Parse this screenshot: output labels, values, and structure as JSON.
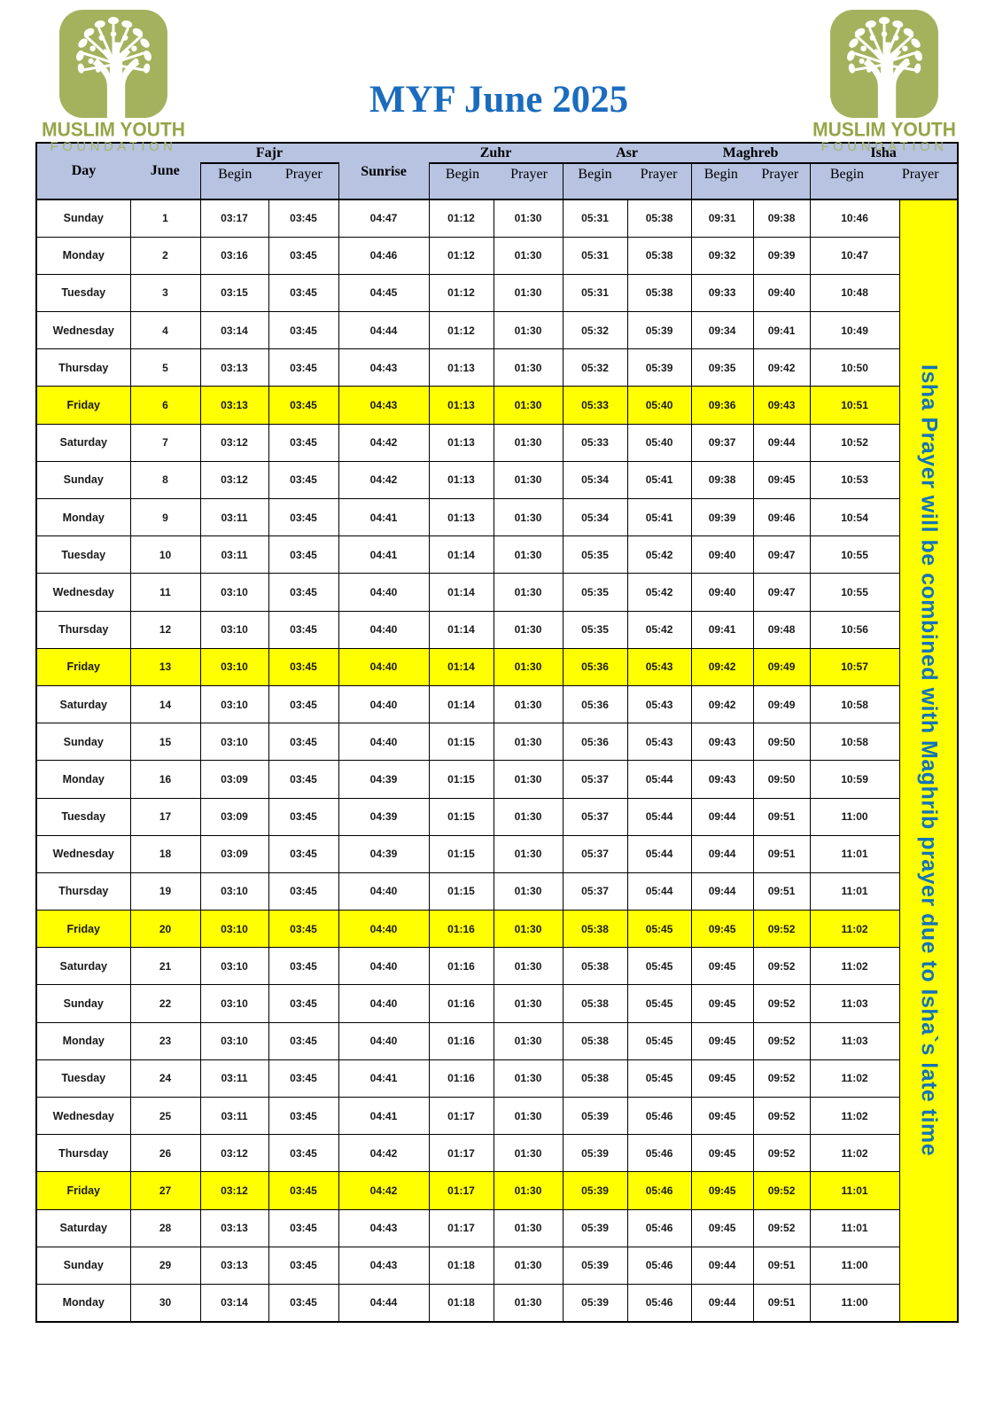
{
  "title": "MYF June 2025",
  "logo": {
    "line1": "MUSLIM YOUTH",
    "line2": "FOUNDATION"
  },
  "colors": {
    "header_fill": "#b7c3e1",
    "friday_highlight": "#ffff00",
    "title_blue": "#1b6cbe",
    "note_blue": "#1374b8",
    "logo_green": "#a4b25e"
  },
  "table": {
    "header": {
      "day": "Day",
      "june": "June",
      "groups": [
        "Fajr",
        "Sunrise",
        "Zuhr",
        "Asr",
        "Maghreb",
        "Isha"
      ],
      "begin": "Begin",
      "prayer": "Prayer"
    },
    "note": "Isha Prayer will be combined with Maghrib prayer due to Isha`s late time",
    "rows": [
      {
        "day": "Sunday",
        "date": "1",
        "friday": false,
        "times": [
          "03:17",
          "03:45",
          "04:47",
          "01:12",
          "01:30",
          "05:31",
          "05:38",
          "09:31",
          "09:38",
          "10:46"
        ]
      },
      {
        "day": "Monday",
        "date": "2",
        "friday": false,
        "times": [
          "03:16",
          "03:45",
          "04:46",
          "01:12",
          "01:30",
          "05:31",
          "05:38",
          "09:32",
          "09:39",
          "10:47"
        ]
      },
      {
        "day": "Tuesday",
        "date": "3",
        "friday": false,
        "times": [
          "03:15",
          "03:45",
          "04:45",
          "01:12",
          "01:30",
          "05:31",
          "05:38",
          "09:33",
          "09:40",
          "10:48"
        ]
      },
      {
        "day": "Wednesday",
        "date": "4",
        "friday": false,
        "times": [
          "03:14",
          "03:45",
          "04:44",
          "01:12",
          "01:30",
          "05:32",
          "05:39",
          "09:34",
          "09:41",
          "10:49"
        ]
      },
      {
        "day": "Thursday",
        "date": "5",
        "friday": false,
        "times": [
          "03:13",
          "03:45",
          "04:43",
          "01:13",
          "01:30",
          "05:32",
          "05:39",
          "09:35",
          "09:42",
          "10:50"
        ]
      },
      {
        "day": "Friday",
        "date": "6",
        "friday": true,
        "times": [
          "03:13",
          "03:45",
          "04:43",
          "01:13",
          "01:30",
          "05:33",
          "05:40",
          "09:36",
          "09:43",
          "10:51"
        ]
      },
      {
        "day": "Saturday",
        "date": "7",
        "friday": false,
        "times": [
          "03:12",
          "03:45",
          "04:42",
          "01:13",
          "01:30",
          "05:33",
          "05:40",
          "09:37",
          "09:44",
          "10:52"
        ]
      },
      {
        "day": "Sunday",
        "date": "8",
        "friday": false,
        "times": [
          "03:12",
          "03:45",
          "04:42",
          "01:13",
          "01:30",
          "05:34",
          "05:41",
          "09:38",
          "09:45",
          "10:53"
        ]
      },
      {
        "day": "Monday",
        "date": "9",
        "friday": false,
        "times": [
          "03:11",
          "03:45",
          "04:41",
          "01:13",
          "01:30",
          "05:34",
          "05:41",
          "09:39",
          "09:46",
          "10:54"
        ]
      },
      {
        "day": "Tuesday",
        "date": "10",
        "friday": false,
        "times": [
          "03:11",
          "03:45",
          "04:41",
          "01:14",
          "01:30",
          "05:35",
          "05:42",
          "09:40",
          "09:47",
          "10:55"
        ]
      },
      {
        "day": "Wednesday",
        "date": "11",
        "friday": false,
        "times": [
          "03:10",
          "03:45",
          "04:40",
          "01:14",
          "01:30",
          "05:35",
          "05:42",
          "09:40",
          "09:47",
          "10:55"
        ]
      },
      {
        "day": "Thursday",
        "date": "12",
        "friday": false,
        "times": [
          "03:10",
          "03:45",
          "04:40",
          "01:14",
          "01:30",
          "05:35",
          "05:42",
          "09:41",
          "09:48",
          "10:56"
        ]
      },
      {
        "day": "Friday",
        "date": "13",
        "friday": true,
        "times": [
          "03:10",
          "03:45",
          "04:40",
          "01:14",
          "01:30",
          "05:36",
          "05:43",
          "09:42",
          "09:49",
          "10:57"
        ]
      },
      {
        "day": "Saturday",
        "date": "14",
        "friday": false,
        "times": [
          "03:10",
          "03:45",
          "04:40",
          "01:14",
          "01:30",
          "05:36",
          "05:43",
          "09:42",
          "09:49",
          "10:58"
        ]
      },
      {
        "day": "Sunday",
        "date": "15",
        "friday": false,
        "times": [
          "03:10",
          "03:45",
          "04:40",
          "01:15",
          "01:30",
          "05:36",
          "05:43",
          "09:43",
          "09:50",
          "10:58"
        ]
      },
      {
        "day": "Monday",
        "date": "16",
        "friday": false,
        "times": [
          "03:09",
          "03:45",
          "04:39",
          "01:15",
          "01:30",
          "05:37",
          "05:44",
          "09:43",
          "09:50",
          "10:59"
        ]
      },
      {
        "day": "Tuesday",
        "date": "17",
        "friday": false,
        "times": [
          "03:09",
          "03:45",
          "04:39",
          "01:15",
          "01:30",
          "05:37",
          "05:44",
          "09:44",
          "09:51",
          "11:00"
        ]
      },
      {
        "day": "Wednesday",
        "date": "18",
        "friday": false,
        "times": [
          "03:09",
          "03:45",
          "04:39",
          "01:15",
          "01:30",
          "05:37",
          "05:44",
          "09:44",
          "09:51",
          "11:01"
        ]
      },
      {
        "day": "Thursday",
        "date": "19",
        "friday": false,
        "times": [
          "03:10",
          "03:45",
          "04:40",
          "01:15",
          "01:30",
          "05:37",
          "05:44",
          "09:44",
          "09:51",
          "11:01"
        ]
      },
      {
        "day": "Friday",
        "date": "20",
        "friday": true,
        "times": [
          "03:10",
          "03:45",
          "04:40",
          "01:16",
          "01:30",
          "05:38",
          "05:45",
          "09:45",
          "09:52",
          "11:02"
        ]
      },
      {
        "day": "Saturday",
        "date": "21",
        "friday": false,
        "times": [
          "03:10",
          "03:45",
          "04:40",
          "01:16",
          "01:30",
          "05:38",
          "05:45",
          "09:45",
          "09:52",
          "11:02"
        ]
      },
      {
        "day": "Sunday",
        "date": "22",
        "friday": false,
        "times": [
          "03:10",
          "03:45",
          "04:40",
          "01:16",
          "01:30",
          "05:38",
          "05:45",
          "09:45",
          "09:52",
          "11:03"
        ]
      },
      {
        "day": "Monday",
        "date": "23",
        "friday": false,
        "times": [
          "03:10",
          "03:45",
          "04:40",
          "01:16",
          "01:30",
          "05:38",
          "05:45",
          "09:45",
          "09:52",
          "11:03"
        ]
      },
      {
        "day": "Tuesday",
        "date": "24",
        "friday": false,
        "times": [
          "03:11",
          "03:45",
          "04:41",
          "01:16",
          "01:30",
          "05:38",
          "05:45",
          "09:45",
          "09:52",
          "11:02"
        ]
      },
      {
        "day": "Wednesday",
        "date": "25",
        "friday": false,
        "times": [
          "03:11",
          "03:45",
          "04:41",
          "01:17",
          "01:30",
          "05:39",
          "05:46",
          "09:45",
          "09:52",
          "11:02"
        ]
      },
      {
        "day": "Thursday",
        "date": "26",
        "friday": false,
        "times": [
          "03:12",
          "03:45",
          "04:42",
          "01:17",
          "01:30",
          "05:39",
          "05:46",
          "09:45",
          "09:52",
          "11:02"
        ]
      },
      {
        "day": "Friday",
        "date": "27",
        "friday": true,
        "times": [
          "03:12",
          "03:45",
          "04:42",
          "01:17",
          "01:30",
          "05:39",
          "05:46",
          "09:45",
          "09:52",
          "11:01"
        ]
      },
      {
        "day": "Saturday",
        "date": "28",
        "friday": false,
        "times": [
          "03:13",
          "03:45",
          "04:43",
          "01:17",
          "01:30",
          "05:39",
          "05:46",
          "09:45",
          "09:52",
          "11:01"
        ]
      },
      {
        "day": "Sunday",
        "date": "29",
        "friday": false,
        "times": [
          "03:13",
          "03:45",
          "04:43",
          "01:18",
          "01:30",
          "05:39",
          "05:46",
          "09:44",
          "09:51",
          "11:00"
        ]
      },
      {
        "day": "Monday",
        "date": "30",
        "friday": false,
        "times": [
          "03:14",
          "03:45",
          "04:44",
          "01:18",
          "01:30",
          "05:39",
          "05:46",
          "09:44",
          "09:51",
          "11:00"
        ]
      }
    ]
  }
}
